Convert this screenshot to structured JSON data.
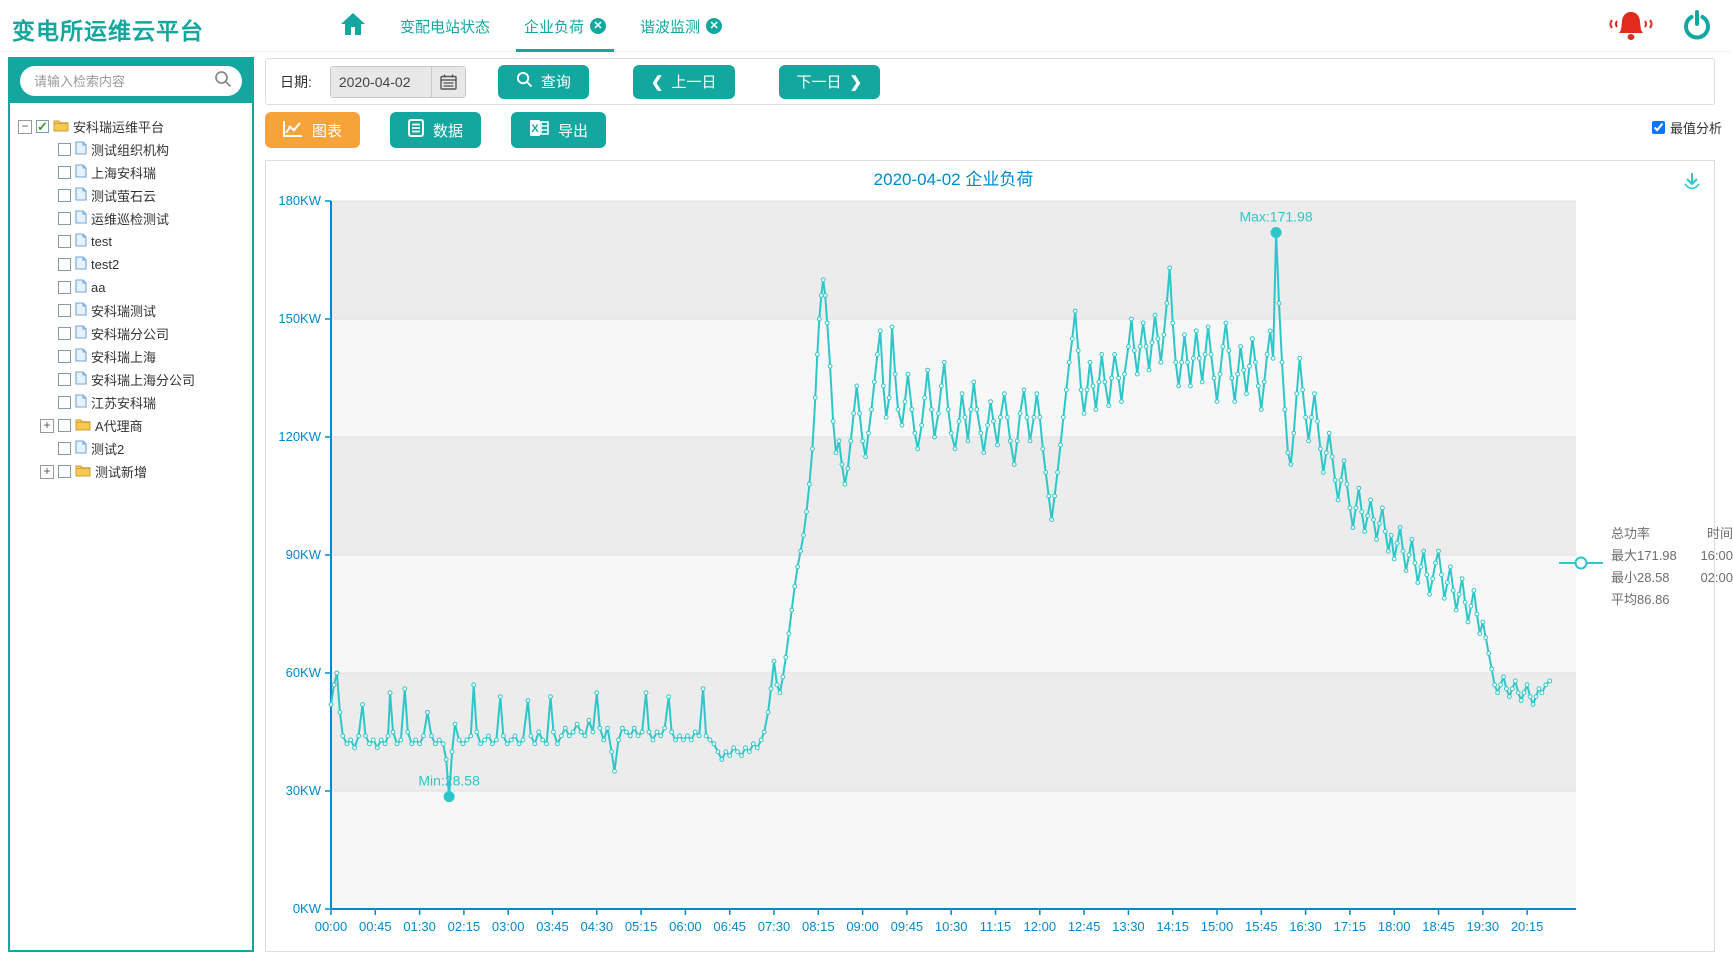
{
  "app": {
    "title": "变电所运维云平台"
  },
  "header": {
    "tabs": [
      {
        "label": "变配电站状态",
        "closable": false,
        "active": false
      },
      {
        "label": "企业负荷",
        "closable": true,
        "active": true
      },
      {
        "label": "谐波监测",
        "closable": true,
        "active": false
      }
    ]
  },
  "sidebar": {
    "search_placeholder": "请输入检索内容",
    "tree_root": {
      "label": "安科瑞运维平台",
      "checked": true
    },
    "tree_children": [
      {
        "label": "测试组织机构",
        "type": "file"
      },
      {
        "label": "上海安科瑞",
        "type": "file"
      },
      {
        "label": "测试萤石云",
        "type": "file"
      },
      {
        "label": "运维巡检测试",
        "type": "file"
      },
      {
        "label": "test",
        "type": "file"
      },
      {
        "label": "test2",
        "type": "file"
      },
      {
        "label": "aa",
        "type": "file"
      },
      {
        "label": "安科瑞测试",
        "type": "file"
      },
      {
        "label": "安科瑞分公司",
        "type": "file"
      },
      {
        "label": "安科瑞上海",
        "type": "file"
      },
      {
        "label": "安科瑞上海分公司",
        "type": "file"
      },
      {
        "label": "江苏安科瑞",
        "type": "file"
      },
      {
        "label": "A代理商",
        "type": "folder"
      },
      {
        "label": "测试2",
        "type": "file"
      },
      {
        "label": "测试新增",
        "type": "folder"
      }
    ]
  },
  "toolbar": {
    "date_label": "日期:",
    "date_value": "2020-04-02",
    "query_label": "查询",
    "prev_label": "上一日",
    "next_label": "下一日",
    "chart_label": "图表",
    "data_label": "数据",
    "export_label": "导出",
    "max_analysis_label": "最值分析",
    "max_analysis_checked": true
  },
  "summary": {
    "col1_header": "总功率",
    "col2_header": "时间",
    "rows": [
      {
        "value": "最大171.98",
        "time": "16:00"
      },
      {
        "value": "最小28.58",
        "time": "02:00"
      },
      {
        "value": "平均86.86",
        "time": ""
      }
    ]
  },
  "chart_data": {
    "type": "line",
    "title": "2020-04-02 企业负荷",
    "series_name": "总功率",
    "unit": "KW",
    "ylim": [
      0,
      180
    ],
    "ytick_labels": [
      "0KW",
      "30KW",
      "60KW",
      "90KW",
      "120KW",
      "150KW",
      "180KW"
    ],
    "xtick_interval_min": 45,
    "xtick_labels": [
      "00:00",
      "00:45",
      "01:30",
      "02:15",
      "03:00",
      "03:45",
      "04:30",
      "05:15",
      "06:00",
      "06:45",
      "07:30",
      "08:15",
      "09:00",
      "09:45",
      "10:30",
      "11:15",
      "12:00",
      "12:45",
      "13:30",
      "14:15",
      "15:00",
      "15:45",
      "16:30",
      "17:15",
      "18:00",
      "18:45",
      "19:30",
      "20:15"
    ],
    "max_point": {
      "label": "Max:171.98",
      "value": 171.98,
      "time_min": 960,
      "time": "16:00"
    },
    "min_point": {
      "label": "Min:28.58",
      "value": 28.58,
      "time_min": 120,
      "time": "02:00"
    },
    "average": 86.86,
    "line_color": "#2ec7c9",
    "axis_color": "#008acd",
    "title_color": "#008acd",
    "band_colors": [
      "#f7f7f7",
      "#ececec"
    ],
    "grid_on": true,
    "legend_position": "right",
    "points": [
      [
        0,
        52
      ],
      [
        3,
        57
      ],
      [
        6,
        60
      ],
      [
        9,
        50
      ],
      [
        12,
        44
      ],
      [
        16,
        42
      ],
      [
        20,
        43
      ],
      [
        24,
        41
      ],
      [
        28,
        44
      ],
      [
        32,
        52
      ],
      [
        35,
        44
      ],
      [
        39,
        42
      ],
      [
        43,
        43
      ],
      [
        47,
        41
      ],
      [
        51,
        43
      ],
      [
        55,
        42
      ],
      [
        58,
        44
      ],
      [
        60,
        55
      ],
      [
        63,
        45
      ],
      [
        67,
        42
      ],
      [
        71,
        43
      ],
      [
        75,
        56
      ],
      [
        78,
        45
      ],
      [
        82,
        42
      ],
      [
        86,
        43
      ],
      [
        90,
        42
      ],
      [
        94,
        44
      ],
      [
        98,
        50
      ],
      [
        102,
        44
      ],
      [
        106,
        42
      ],
      [
        110,
        43
      ],
      [
        114,
        42
      ],
      [
        117,
        38
      ],
      [
        120,
        28.58
      ],
      [
        123,
        40
      ],
      [
        126,
        47
      ],
      [
        130,
        43
      ],
      [
        134,
        42
      ],
      [
        138,
        43
      ],
      [
        142,
        44
      ],
      [
        145,
        57
      ],
      [
        148,
        45
      ],
      [
        152,
        42
      ],
      [
        156,
        43
      ],
      [
        160,
        44
      ],
      [
        164,
        42
      ],
      [
        168,
        43
      ],
      [
        172,
        54
      ],
      [
        175,
        44
      ],
      [
        179,
        42
      ],
      [
        183,
        43
      ],
      [
        187,
        44
      ],
      [
        191,
        42
      ],
      [
        195,
        43
      ],
      [
        200,
        53
      ],
      [
        203,
        44
      ],
      [
        207,
        42
      ],
      [
        211,
        45
      ],
      [
        215,
        43
      ],
      [
        219,
        42
      ],
      [
        223,
        54
      ],
      [
        226,
        45
      ],
      [
        230,
        42
      ],
      [
        234,
        44
      ],
      [
        238,
        46
      ],
      [
        242,
        44
      ],
      [
        246,
        45
      ],
      [
        250,
        47
      ],
      [
        254,
        45
      ],
      [
        258,
        44
      ],
      [
        262,
        48
      ],
      [
        266,
        45
      ],
      [
        270,
        55
      ],
      [
        273,
        46
      ],
      [
        277,
        43
      ],
      [
        281,
        46
      ],
      [
        285,
        40
      ],
      [
        288,
        35
      ],
      [
        292,
        43
      ],
      [
        296,
        46
      ],
      [
        300,
        45
      ],
      [
        304,
        44
      ],
      [
        308,
        46
      ],
      [
        312,
        44
      ],
      [
        316,
        45
      ],
      [
        320,
        55
      ],
      [
        323,
        45
      ],
      [
        327,
        43
      ],
      [
        331,
        45
      ],
      [
        335,
        44
      ],
      [
        339,
        46
      ],
      [
        343,
        54
      ],
      [
        346,
        45
      ],
      [
        350,
        43
      ],
      [
        354,
        44
      ],
      [
        358,
        43
      ],
      [
        362,
        44
      ],
      [
        366,
        43
      ],
      [
        370,
        45
      ],
      [
        374,
        44
      ],
      [
        378,
        56
      ],
      [
        381,
        44
      ],
      [
        385,
        43
      ],
      [
        389,
        42
      ],
      [
        393,
        40
      ],
      [
        397,
        38
      ],
      [
        401,
        40
      ],
      [
        405,
        39
      ],
      [
        409,
        41
      ],
      [
        413,
        40
      ],
      [
        417,
        39
      ],
      [
        421,
        41
      ],
      [
        425,
        40
      ],
      [
        429,
        42
      ],
      [
        433,
        41
      ],
      [
        437,
        43
      ],
      [
        440,
        45
      ],
      [
        444,
        50
      ],
      [
        447,
        56
      ],
      [
        450,
        63
      ],
      [
        453,
        57
      ],
      [
        456,
        55
      ],
      [
        459,
        59
      ],
      [
        462,
        64
      ],
      [
        465,
        70
      ],
      [
        468,
        76
      ],
      [
        471,
        82
      ],
      [
        474,
        87
      ],
      [
        477,
        91
      ],
      [
        480,
        95
      ],
      [
        483,
        101
      ],
      [
        486,
        108
      ],
      [
        489,
        117
      ],
      [
        492,
        130
      ],
      [
        494,
        141
      ],
      [
        496,
        150
      ],
      [
        498,
        156
      ],
      [
        500,
        160
      ],
      [
        502,
        156
      ],
      [
        504,
        149
      ],
      [
        507,
        138
      ],
      [
        510,
        124
      ],
      [
        513,
        116
      ],
      [
        516,
        119
      ],
      [
        519,
        113
      ],
      [
        522,
        108
      ],
      [
        525,
        112
      ],
      [
        528,
        119
      ],
      [
        531,
        126
      ],
      [
        534,
        133
      ],
      [
        537,
        126
      ],
      [
        540,
        119
      ],
      [
        543,
        115
      ],
      [
        546,
        121
      ],
      [
        549,
        127
      ],
      [
        552,
        134
      ],
      [
        555,
        141
      ],
      [
        558,
        147
      ],
      [
        561,
        133
      ],
      [
        564,
        125
      ],
      [
        567,
        130
      ],
      [
        570,
        148
      ],
      [
        573,
        136
      ],
      [
        576,
        127
      ],
      [
        580,
        123
      ],
      [
        583,
        129
      ],
      [
        586,
        136
      ],
      [
        590,
        127
      ],
      [
        593,
        121
      ],
      [
        596,
        117
      ],
      [
        600,
        123
      ],
      [
        603,
        130
      ],
      [
        606,
        137
      ],
      [
        610,
        127
      ],
      [
        613,
        120
      ],
      [
        617,
        126
      ],
      [
        620,
        133
      ],
      [
        623,
        139
      ],
      [
        627,
        127
      ],
      [
        630,
        121
      ],
      [
        634,
        117
      ],
      [
        638,
        124
      ],
      [
        641,
        131
      ],
      [
        644,
        125
      ],
      [
        647,
        119
      ],
      [
        650,
        127
      ],
      [
        653,
        134
      ],
      [
        656,
        127
      ],
      [
        660,
        121
      ],
      [
        663,
        116
      ],
      [
        667,
        123
      ],
      [
        670,
        129
      ],
      [
        673,
        124
      ],
      [
        677,
        118
      ],
      [
        680,
        125
      ],
      [
        684,
        131
      ],
      [
        687,
        125
      ],
      [
        690,
        119
      ],
      [
        694,
        113
      ],
      [
        697,
        119
      ],
      [
        700,
        126
      ],
      [
        704,
        132
      ],
      [
        707,
        125
      ],
      [
        710,
        119
      ],
      [
        714,
        125
      ],
      [
        717,
        131
      ],
      [
        720,
        125
      ],
      [
        723,
        117
      ],
      [
        726,
        111
      ],
      [
        729,
        105
      ],
      [
        732,
        99
      ],
      [
        735,
        105
      ],
      [
        738,
        111
      ],
      [
        741,
        118
      ],
      [
        744,
        125
      ],
      [
        747,
        132
      ],
      [
        750,
        139
      ],
      [
        753,
        145
      ],
      [
        756,
        152
      ],
      [
        759,
        142
      ],
      [
        762,
        132
      ],
      [
        765,
        126
      ],
      [
        768,
        132
      ],
      [
        771,
        139
      ],
      [
        774,
        133
      ],
      [
        777,
        127
      ],
      [
        780,
        134
      ],
      [
        783,
        141
      ],
      [
        786,
        134
      ],
      [
        790,
        128
      ],
      [
        793,
        135
      ],
      [
        796,
        141
      ],
      [
        800,
        135
      ],
      [
        803,
        129
      ],
      [
        806,
        136
      ],
      [
        810,
        143
      ],
      [
        813,
        150
      ],
      [
        816,
        142
      ],
      [
        819,
        136
      ],
      [
        822,
        143
      ],
      [
        825,
        149
      ],
      [
        828,
        143
      ],
      [
        831,
        137
      ],
      [
        834,
        144
      ],
      [
        837,
        151
      ],
      [
        840,
        145
      ],
      [
        843,
        139
      ],
      [
        846,
        146
      ],
      [
        849,
        154
      ],
      [
        852,
        163
      ],
      [
        855,
        149
      ],
      [
        858,
        139
      ],
      [
        861,
        133
      ],
      [
        864,
        139
      ],
      [
        867,
        146
      ],
      [
        870,
        139
      ],
      [
        873,
        133
      ],
      [
        876,
        140
      ],
      [
        879,
        147
      ],
      [
        882,
        140
      ],
      [
        885,
        134
      ],
      [
        888,
        141
      ],
      [
        891,
        148
      ],
      [
        894,
        141
      ],
      [
        897,
        135
      ],
      [
        900,
        129
      ],
      [
        903,
        136
      ],
      [
        906,
        143
      ],
      [
        909,
        149
      ],
      [
        912,
        142
      ],
      [
        915,
        135
      ],
      [
        918,
        129
      ],
      [
        921,
        136
      ],
      [
        924,
        143
      ],
      [
        927,
        137
      ],
      [
        930,
        131
      ],
      [
        933,
        138
      ],
      [
        936,
        145
      ],
      [
        939,
        139
      ],
      [
        942,
        133
      ],
      [
        945,
        127
      ],
      [
        948,
        134
      ],
      [
        951,
        141
      ],
      [
        954,
        147
      ],
      [
        957,
        140
      ],
      [
        960,
        171.98
      ],
      [
        963,
        154
      ],
      [
        966,
        139
      ],
      [
        969,
        127
      ],
      [
        972,
        116
      ],
      [
        975,
        113
      ],
      [
        978,
        121
      ],
      [
        981,
        131
      ],
      [
        984,
        140
      ],
      [
        987,
        132
      ],
      [
        990,
        125
      ],
      [
        993,
        119
      ],
      [
        996,
        125
      ],
      [
        999,
        131
      ],
      [
        1002,
        124
      ],
      [
        1005,
        117
      ],
      [
        1008,
        111
      ],
      [
        1011,
        116
      ],
      [
        1014,
        121
      ],
      [
        1017,
        115
      ],
      [
        1020,
        109
      ],
      [
        1023,
        104
      ],
      [
        1026,
        109
      ],
      [
        1029,
        114
      ],
      [
        1032,
        108
      ],
      [
        1035,
        102
      ],
      [
        1038,
        97
      ],
      [
        1041,
        102
      ],
      [
        1044,
        107
      ],
      [
        1047,
        101
      ],
      [
        1050,
        96
      ],
      [
        1053,
        100
      ],
      [
        1056,
        104
      ],
      [
        1059,
        99
      ],
      [
        1062,
        94
      ],
      [
        1065,
        98
      ],
      [
        1068,
        102
      ],
      [
        1071,
        96
      ],
      [
        1074,
        91
      ],
      [
        1077,
        95
      ],
      [
        1080,
        89
      ],
      [
        1083,
        93
      ],
      [
        1086,
        97
      ],
      [
        1089,
        91
      ],
      [
        1092,
        86
      ],
      [
        1095,
        90
      ],
      [
        1098,
        94
      ],
      [
        1101,
        88
      ],
      [
        1104,
        83
      ],
      [
        1107,
        87
      ],
      [
        1110,
        91
      ],
      [
        1113,
        85
      ],
      [
        1116,
        80
      ],
      [
        1119,
        84
      ],
      [
        1122,
        88
      ],
      [
        1125,
        91
      ],
      [
        1128,
        85
      ],
      [
        1131,
        79
      ],
      [
        1134,
        83
      ],
      [
        1137,
        87
      ],
      [
        1140,
        81
      ],
      [
        1143,
        76
      ],
      [
        1146,
        80
      ],
      [
        1149,
        84
      ],
      [
        1152,
        78
      ],
      [
        1155,
        73
      ],
      [
        1158,
        77
      ],
      [
        1161,
        81
      ],
      [
        1164,
        75
      ],
      [
        1167,
        70
      ],
      [
        1170,
        73
      ],
      [
        1173,
        69
      ],
      [
        1176,
        65
      ],
      [
        1179,
        61
      ],
      [
        1182,
        57
      ],
      [
        1185,
        55
      ],
      [
        1188,
        57
      ],
      [
        1191,
        59
      ],
      [
        1194,
        56
      ],
      [
        1197,
        54
      ],
      [
        1200,
        56
      ],
      [
        1203,
        58
      ],
      [
        1206,
        55
      ],
      [
        1209,
        53
      ],
      [
        1212,
        55
      ],
      [
        1215,
        57
      ],
      [
        1218,
        54
      ],
      [
        1221,
        52
      ],
      [
        1224,
        54
      ],
      [
        1227,
        56
      ],
      [
        1230,
        55
      ],
      [
        1234,
        57
      ],
      [
        1238,
        58
      ]
    ]
  }
}
